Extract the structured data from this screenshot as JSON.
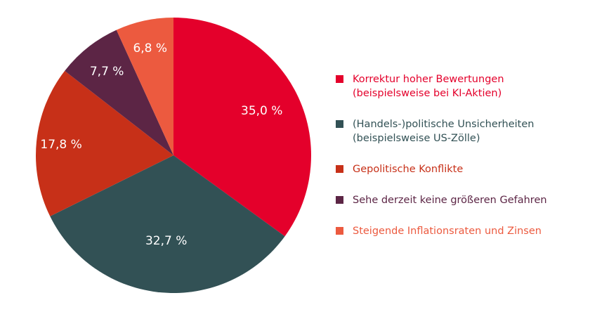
{
  "chart_data": {
    "type": "pie",
    "title": "",
    "start": "top, clockwise",
    "slices": [
      {
        "label": "Korrektur hoher Bewertungen\n(beispielsweise bei KI-Aktien)",
        "value": 35.0,
        "display": "35,0 %",
        "color": "#e4002b"
      },
      {
        "label": "(Handels-)politische Unsicherheiten\n(beispielsweise US-Zölle)",
        "value": 32.7,
        "display": "32,7 %",
        "color": "#325155"
      },
      {
        "label": "Gepolitische Konflikte",
        "value": 17.8,
        "display": "17,8 %",
        "color": "#c73018"
      },
      {
        "label": "Sehe derzeit keine größeren Gefahren",
        "value": 7.7,
        "display": "7,7 %",
        "color": "#5c2545"
      },
      {
        "label": "Steigende Inflationsraten und Zinsen",
        "value": 6.8,
        "display": "6,8 %",
        "color": "#ec5a3f"
      }
    ],
    "legend_position": "right"
  }
}
